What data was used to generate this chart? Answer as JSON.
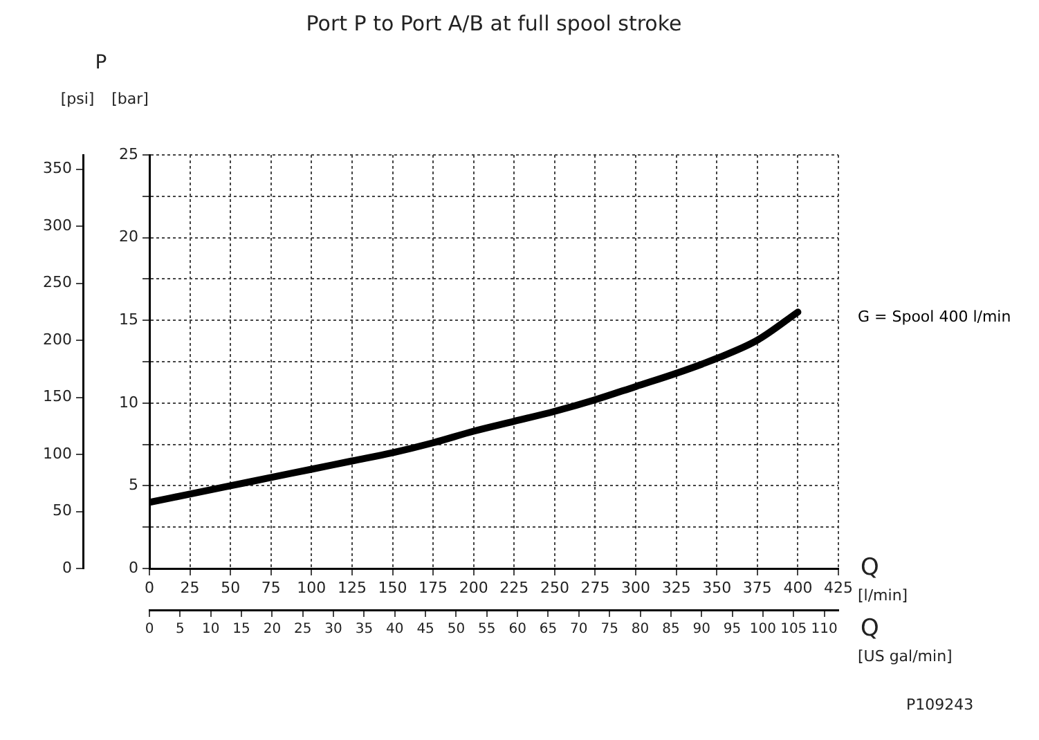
{
  "chart_data": {
    "type": "line",
    "title": "Port P to Port A/B at full spool stroke",
    "xlabel": "Q [l/min]",
    "x2label": "Q [US gal/min]",
    "ylabel": "[bar]",
    "y2label": "[psi]",
    "x": [
      0,
      25,
      50,
      75,
      100,
      125,
      150,
      175,
      200,
      225,
      250,
      275,
      300,
      325,
      350,
      375,
      400
    ],
    "series": [
      {
        "name": "G = Spool 400 l/min",
        "color": "#000000",
        "values": [
          4.0,
          4.5,
          5.0,
          5.5,
          6.0,
          6.5,
          7.0,
          7.6,
          8.3,
          8.9,
          9.5,
          10.2,
          11.0,
          11.8,
          12.7,
          13.8,
          15.5
        ]
      }
    ],
    "xlim": [
      0,
      425
    ],
    "xticks": [
      0,
      25,
      50,
      75,
      100,
      125,
      150,
      175,
      200,
      225,
      250,
      275,
      300,
      325,
      350,
      375,
      400,
      425
    ],
    "x2lim": [
      0,
      112.3
    ],
    "x2ticks": [
      0,
      5,
      10,
      15,
      20,
      25,
      30,
      35,
      40,
      45,
      50,
      55,
      60,
      65,
      70,
      75,
      80,
      85,
      90,
      95,
      100,
      105,
      110
    ],
    "ylim": [
      0,
      25
    ],
    "yticks": [
      0,
      {
        "value": 2.5,
        "label": null
      },
      5,
      {
        "value": 7.5,
        "label": null
      },
      10,
      {
        "value": 12.5,
        "label": null
      },
      15,
      {
        "value": 17.5,
        "label": null
      },
      20,
      {
        "value": 22.5,
        "label": null
      },
      25
    ],
    "y2lim": [
      0,
      362.6
    ],
    "y2ticks": [
      0,
      50,
      100,
      150,
      200,
      250,
      300,
      350
    ],
    "grid": true,
    "marker": "none",
    "line_style": "solid",
    "annotations": [
      "P",
      "P109243"
    ]
  }
}
